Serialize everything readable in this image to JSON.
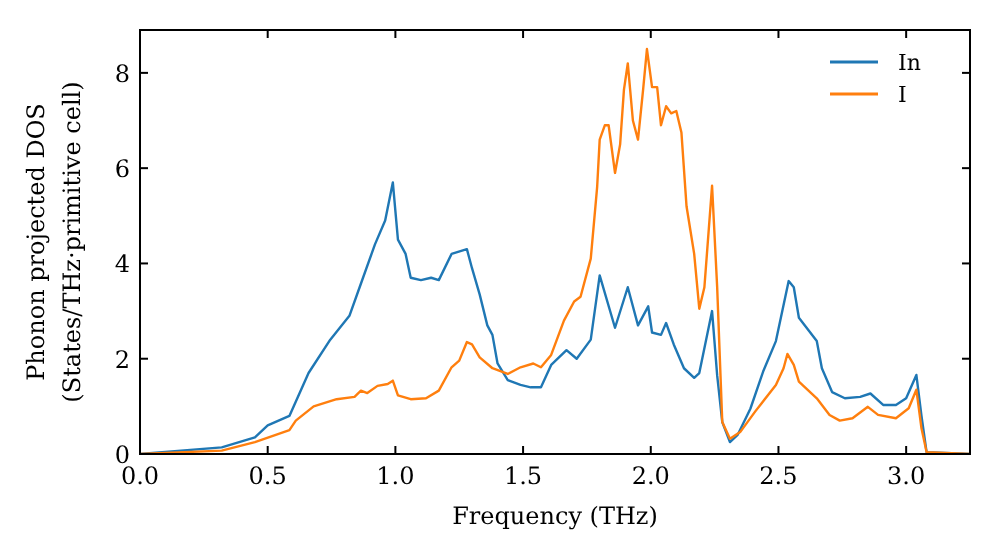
{
  "chart_data": {
    "type": "line",
    "xlabel": "Frequency (THz)",
    "ylabel": "Phonon projected DOS\n(States/THz·primitive cell)",
    "xlim": [
      0,
      3.25
    ],
    "ylim": [
      0,
      8.9
    ],
    "xticks": [
      {
        "value": 0,
        "label": "0.0"
      },
      0.5,
      {
        "value": 1,
        "label": "1.0"
      },
      1.5,
      {
        "value": 2,
        "label": "2.0"
      },
      2.5,
      {
        "value": 3,
        "label": "3.0"
      }
    ],
    "yticks": [
      0,
      2,
      4,
      6,
      8
    ],
    "grid": false,
    "legend": "top right",
    "marker": "none",
    "line_style": "solid",
    "series": [
      {
        "name": "In",
        "color": "#1f77b4",
        "x": [
          0,
          0.32,
          0.45,
          0.5,
          0.585,
          0.66,
          0.745,
          0.82,
          0.86,
          0.92,
          0.96,
          0.99,
          1.01,
          1.04,
          1.06,
          1.1,
          1.14,
          1.17,
          1.22,
          1.28,
          1.3,
          1.33,
          1.36,
          1.38,
          1.4,
          1.44,
          1.49,
          1.53,
          1.57,
          1.61,
          1.67,
          1.71,
          1.765,
          1.8,
          1.86,
          1.91,
          1.95,
          1.99,
          2.005,
          2.04,
          2.06,
          2.09,
          2.13,
          2.17,
          2.19,
          2.24,
          2.26,
          2.28,
          2.31,
          2.34,
          2.39,
          2.44,
          2.49,
          2.54,
          2.56,
          2.58,
          2.65,
          2.67,
          2.71,
          2.76,
          2.82,
          2.86,
          2.91,
          2.96,
          3.0,
          3.04,
          3.06,
          3.08,
          3.25
        ],
        "values": [
          0,
          0.14,
          0.35,
          0.6,
          0.8,
          1.7,
          2.4,
          2.9,
          3.5,
          4.4,
          4.9,
          5.7,
          4.5,
          4.2,
          3.7,
          3.65,
          3.7,
          3.65,
          4.2,
          4.3,
          3.9,
          3.35,
          2.7,
          2.5,
          1.9,
          1.55,
          1.45,
          1.4,
          1.4,
          1.87,
          2.18,
          2.0,
          2.4,
          3.75,
          2.65,
          3.5,
          2.7,
          3.1,
          2.55,
          2.5,
          2.75,
          2.3,
          1.8,
          1.6,
          1.7,
          3.0,
          1.65,
          0.67,
          0.25,
          0.4,
          0.95,
          1.73,
          2.37,
          3.63,
          3.5,
          2.86,
          2.37,
          1.8,
          1.3,
          1.17,
          1.2,
          1.27,
          1.03,
          1.03,
          1.17,
          1.66,
          0.8,
          0.04,
          0
        ]
      },
      {
        "name": "I",
        "color": "#ff7f0e",
        "x": [
          0,
          0.32,
          0.45,
          0.585,
          0.61,
          0.68,
          0.77,
          0.84,
          0.865,
          0.89,
          0.93,
          0.97,
          0.99,
          1.01,
          1.06,
          1.12,
          1.17,
          1.22,
          1.25,
          1.28,
          1.3,
          1.33,
          1.38,
          1.44,
          1.49,
          1.54,
          1.57,
          1.61,
          1.66,
          1.7,
          1.725,
          1.765,
          1.79,
          1.8,
          1.82,
          1.835,
          1.86,
          1.88,
          1.895,
          1.91,
          1.93,
          1.95,
          1.97,
          1.985,
          2.005,
          2.025,
          2.04,
          2.06,
          2.08,
          2.1,
          2.12,
          2.14,
          2.17,
          2.19,
          2.21,
          2.24,
          2.26,
          2.28,
          2.31,
          2.35,
          2.41,
          2.49,
          2.52,
          2.535,
          2.56,
          2.58,
          2.65,
          2.7,
          2.74,
          2.79,
          2.85,
          2.89,
          2.96,
          3.01,
          3.04,
          3.06,
          3.08,
          3.25
        ],
        "values": [
          0,
          0.07,
          0.25,
          0.5,
          0.7,
          1.0,
          1.15,
          1.2,
          1.33,
          1.28,
          1.43,
          1.47,
          1.54,
          1.23,
          1.15,
          1.17,
          1.33,
          1.82,
          1.96,
          2.35,
          2.3,
          2.03,
          1.8,
          1.68,
          1.82,
          1.9,
          1.82,
          2.08,
          2.8,
          3.2,
          3.3,
          4.1,
          5.6,
          6.6,
          6.9,
          6.9,
          5.9,
          6.5,
          7.65,
          8.2,
          7.0,
          6.6,
          7.65,
          8.5,
          7.7,
          7.7,
          6.9,
          7.3,
          7.15,
          7.2,
          6.75,
          5.2,
          4.2,
          3.05,
          3.5,
          5.63,
          3.5,
          0.67,
          0.32,
          0.46,
          0.9,
          1.45,
          1.8,
          2.1,
          1.87,
          1.52,
          1.17,
          0.82,
          0.7,
          0.75,
          0.99,
          0.82,
          0.75,
          0.96,
          1.35,
          0.54,
          0.04,
          0
        ]
      }
    ]
  }
}
